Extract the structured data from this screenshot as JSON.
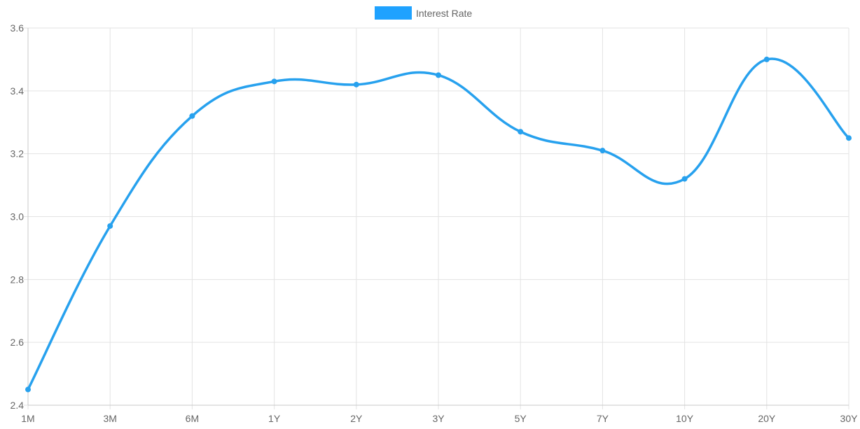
{
  "chart_data": {
    "type": "line",
    "categories": [
      "1M",
      "3M",
      "6M",
      "1Y",
      "2Y",
      "3Y",
      "5Y",
      "7Y",
      "10Y",
      "20Y",
      "30Y"
    ],
    "series": [
      {
        "name": "Interest Rate",
        "values": [
          2.45,
          2.97,
          3.32,
          3.43,
          3.42,
          3.45,
          3.27,
          3.21,
          3.12,
          3.5,
          3.25
        ]
      }
    ],
    "ylim": [
      2.4,
      3.6
    ],
    "yticks": [
      "2.4",
      "2.6",
      "2.8",
      "3.0",
      "3.2",
      "3.4",
      "3.6"
    ],
    "grid": true,
    "legend_position": "top-center",
    "colors": {
      "series": "#27a1ee",
      "legend_box": "#1fa2ff",
      "grid": "#e3e3e3",
      "axis": "#c8c8c8",
      "text": "#666666"
    }
  }
}
